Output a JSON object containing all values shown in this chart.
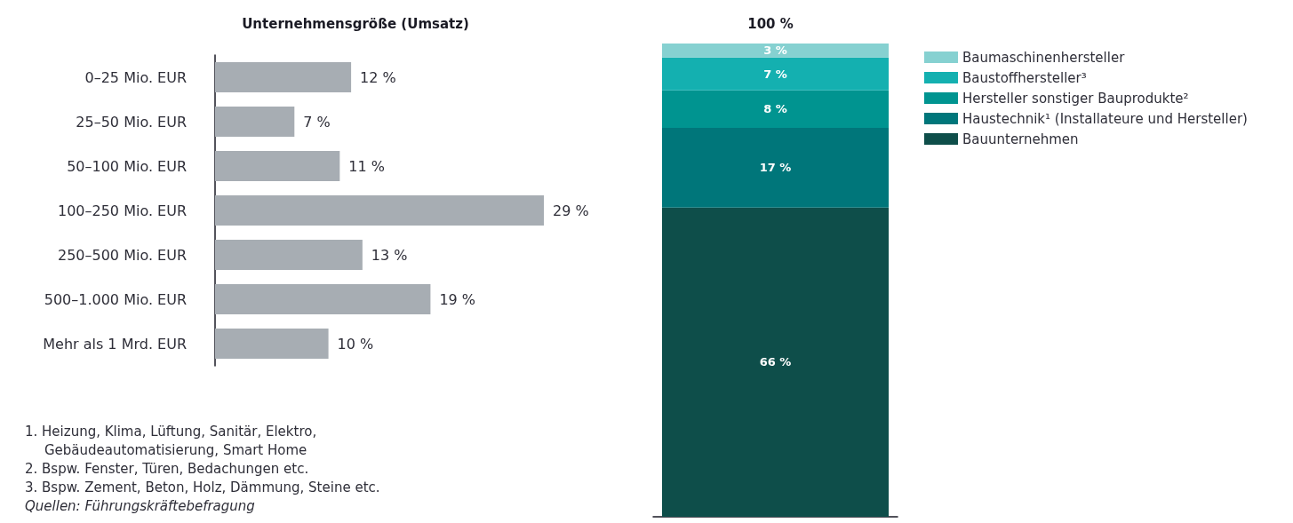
{
  "chart_data": [
    {
      "type": "bar",
      "orientation": "horizontal",
      "title": "Unternehmensgröße (Umsatz)",
      "categories": [
        "0–25 Mio. EUR",
        "25–50 Mio. EUR",
        "50–100 Mio. EUR",
        "100–250 Mio. EUR",
        "250–500 Mio. EUR",
        "500–1.000 Mio. EUR",
        "Mehr als 1 Mrd. EUR"
      ],
      "values": [
        12,
        7,
        11,
        29,
        13,
        19,
        10
      ],
      "value_labels": [
        "12 %",
        "7 %",
        "11 %",
        "29 %",
        "13 %",
        "19 %",
        "10 %"
      ],
      "color": "#a7adb3",
      "annotations": [
        "1. Heizung, Klima, Lüftung, Sanitär, Elektro, Gebäudeautomatisierung, Smart Home",
        "2. Bspw. Fenster, Türen, Bedachungen etc.",
        "3. Bspw. Zement, Beton, Holz, Dämmung, Steine etc.",
        "Quellen: Führungskräftebefragung"
      ]
    },
    {
      "type": "bar",
      "stacked": true,
      "categories": [
        null
      ],
      "totals": [
        "100 %"
      ],
      "legend": "right",
      "series": [
        {
          "name": "Bauunternehmen",
          "color": "#0e4e4a",
          "values": [
            66
          ],
          "value_labels": [
            "66 %"
          ]
        },
        {
          "name": "Haustechnik¹ (Installateure und Hersteller)",
          "color": "#00767a",
          "values": [
            17
          ],
          "value_labels": [
            "17 %"
          ]
        },
        {
          "name": "Hersteller sonstiger Bauprodukte²",
          "color": "#009490",
          "values": [
            8
          ],
          "value_labels": [
            "8 %"
          ]
        },
        {
          "name": "Baustoffhersteller³",
          "color": "#14b0b0",
          "values": [
            7
          ],
          "value_labels": [
            "7 %"
          ]
        },
        {
          "name": "Baumaschinenhersteller",
          "color": "#86d1d1",
          "values": [
            3
          ],
          "value_labels": [
            "3 %"
          ]
        }
      ]
    }
  ]
}
